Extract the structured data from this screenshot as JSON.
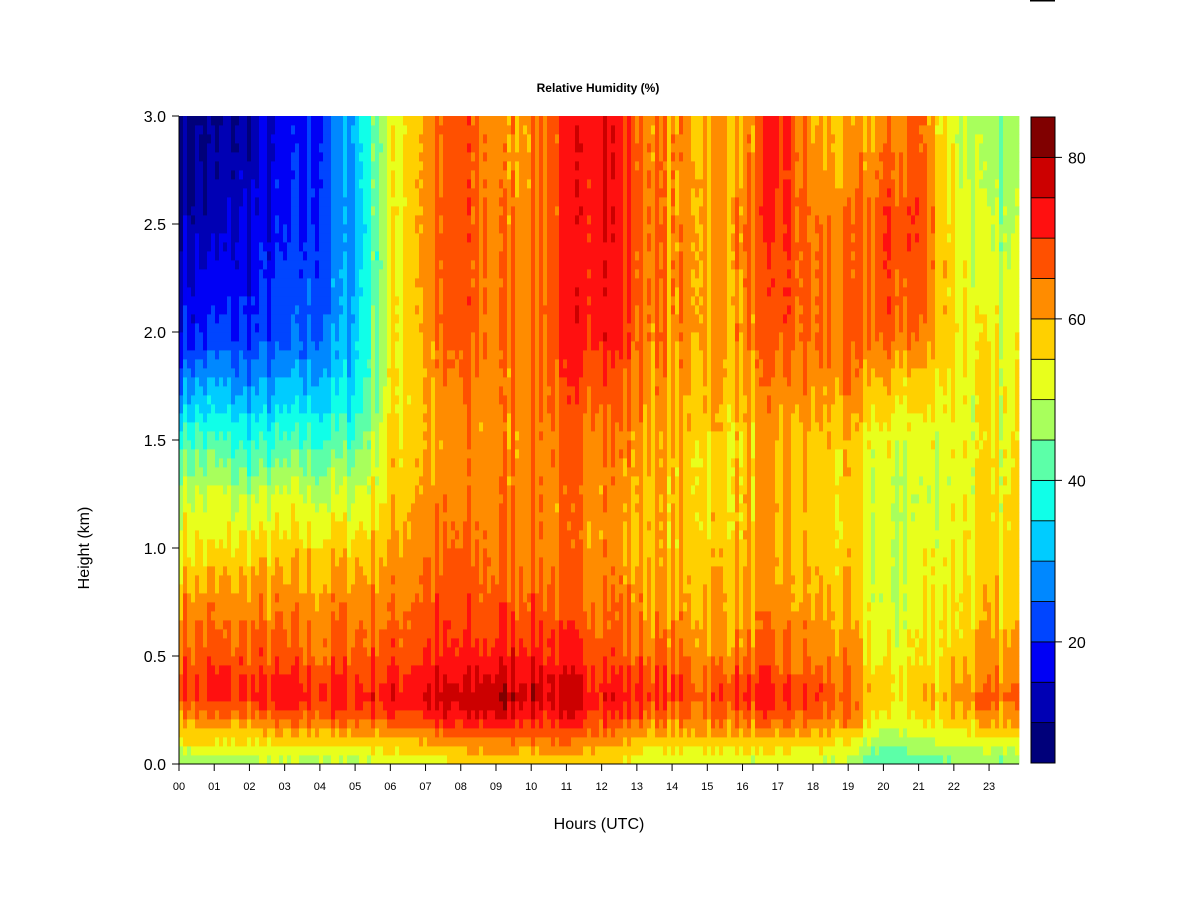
{
  "chart_data": {
    "type": "heatmap",
    "title": "Relative Humidity (%)",
    "xlabel": "Hours (UTC)",
    "ylabel": "Height (km)",
    "xlim": [
      0,
      23.85
    ],
    "ylim": [
      0,
      3.0
    ],
    "x_ticks": [
      "00",
      "01",
      "02",
      "03",
      "04",
      "05",
      "06",
      "07",
      "08",
      "09",
      "10",
      "11",
      "12",
      "13",
      "14",
      "15",
      "16",
      "17",
      "18",
      "19",
      "20",
      "21",
      "22",
      "23"
    ],
    "y_ticks": [
      "0.0",
      "0.5",
      "1.0",
      "1.5",
      "2.0",
      "2.5",
      "3.0"
    ],
    "x": [
      0,
      1,
      2,
      3,
      4,
      5,
      6,
      7,
      8,
      9,
      10,
      11,
      12,
      13,
      14,
      15,
      16,
      17,
      18,
      19,
      20,
      21,
      22,
      23
    ],
    "y": [
      0,
      0.1,
      0.2,
      0.3,
      0.4,
      0.5,
      0.75,
      1.0,
      1.25,
      1.5,
      1.75,
      2.0,
      2.5,
      3.0
    ],
    "z_by_hour": [
      [
        45,
        55,
        60,
        68,
        70,
        66,
        62,
        55,
        50,
        42,
        28,
        18,
        12,
        10
      ],
      [
        45,
        55,
        62,
        70,
        70,
        67,
        62,
        55,
        50,
        40,
        30,
        20,
        12,
        8
      ],
      [
        47,
        55,
        62,
        70,
        70,
        67,
        63,
        56,
        48,
        38,
        28,
        20,
        15,
        12
      ],
      [
        48,
        56,
        64,
        71,
        70,
        66,
        62,
        56,
        50,
        40,
        30,
        22,
        18,
        15
      ],
      [
        48,
        56,
        65,
        72,
        70,
        66,
        62,
        57,
        50,
        40,
        32,
        25,
        22,
        20
      ],
      [
        48,
        57,
        66,
        72,
        70,
        67,
        63,
        58,
        50,
        42,
        35,
        32,
        30,
        32
      ],
      [
        50,
        58,
        67,
        73,
        71,
        68,
        63,
        60,
        57,
        55,
        54,
        53,
        52,
        52
      ],
      [
        52,
        60,
        70,
        76,
        73,
        70,
        67,
        64,
        62,
        60,
        60,
        62,
        63,
        62
      ],
      [
        55,
        62,
        71,
        76,
        74,
        70,
        67,
        65,
        62,
        62,
        64,
        67,
        68,
        68
      ],
      [
        57,
        64,
        74,
        80,
        76,
        72,
        67,
        65,
        63,
        62,
        62,
        64,
        63,
        62
      ],
      [
        56,
        63,
        72,
        78,
        76,
        73,
        68,
        65,
        64,
        64,
        65,
        65,
        64,
        63
      ],
      [
        58,
        64,
        72,
        75,
        73,
        70,
        65,
        63,
        63,
        64,
        67,
        70,
        70,
        70
      ],
      [
        55,
        62,
        70,
        74,
        72,
        70,
        66,
        64,
        64,
        66,
        70,
        75,
        76,
        77
      ],
      [
        52,
        58,
        66,
        72,
        70,
        66,
        62,
        60,
        61,
        62,
        64,
        66,
        67,
        66
      ],
      [
        50,
        56,
        63,
        68,
        67,
        64,
        60,
        58,
        58,
        58,
        60,
        62,
        62,
        62
      ],
      [
        50,
        57,
        64,
        68,
        66,
        63,
        60,
        58,
        57,
        57,
        60,
        62,
        62,
        60
      ],
      [
        50,
        57,
        64,
        70,
        68,
        64,
        60,
        58,
        58,
        57,
        60,
        62,
        63,
        60
      ],
      [
        51,
        57,
        65,
        70,
        68,
        65,
        62,
        60,
        60,
        60,
        63,
        68,
        70,
        72
      ],
      [
        50,
        57,
        64,
        70,
        67,
        64,
        60,
        58,
        57,
        58,
        62,
        65,
        64,
        60
      ],
      [
        48,
        55,
        62,
        66,
        64,
        62,
        58,
        56,
        56,
        57,
        62,
        65,
        63,
        58
      ],
      [
        40,
        45,
        52,
        55,
        55,
        52,
        50,
        50,
        50,
        52,
        58,
        66,
        68,
        62
      ],
      [
        42,
        48,
        54,
        57,
        56,
        55,
        53,
        52,
        50,
        52,
        57,
        65,
        70,
        65
      ],
      [
        45,
        52,
        58,
        62,
        60,
        58,
        56,
        55,
        53,
        53,
        55,
        57,
        55,
        52
      ],
      [
        44,
        52,
        60,
        64,
        62,
        60,
        57,
        55,
        54,
        53,
        53,
        52,
        48,
        45
      ]
    ],
    "colorbar": {
      "levels": [
        5,
        10,
        15,
        20,
        25,
        30,
        35,
        40,
        45,
        50,
        55,
        60,
        65,
        70,
        75,
        80,
        85
      ],
      "tick_labels": [
        "20",
        "40",
        "60",
        "80"
      ],
      "tick_values": [
        20,
        40,
        60,
        80
      ],
      "colors": [
        "#00007A",
        "#0000B4",
        "#0000F5",
        "#0045FF",
        "#0088FF",
        "#00CCFF",
        "#10FFE8",
        "#5CFFA8",
        "#A8FF5C",
        "#E8FF1C",
        "#FFD000",
        "#FF8C00",
        "#FF5000",
        "#FF1010",
        "#CC0000",
        "#800000"
      ]
    }
  }
}
